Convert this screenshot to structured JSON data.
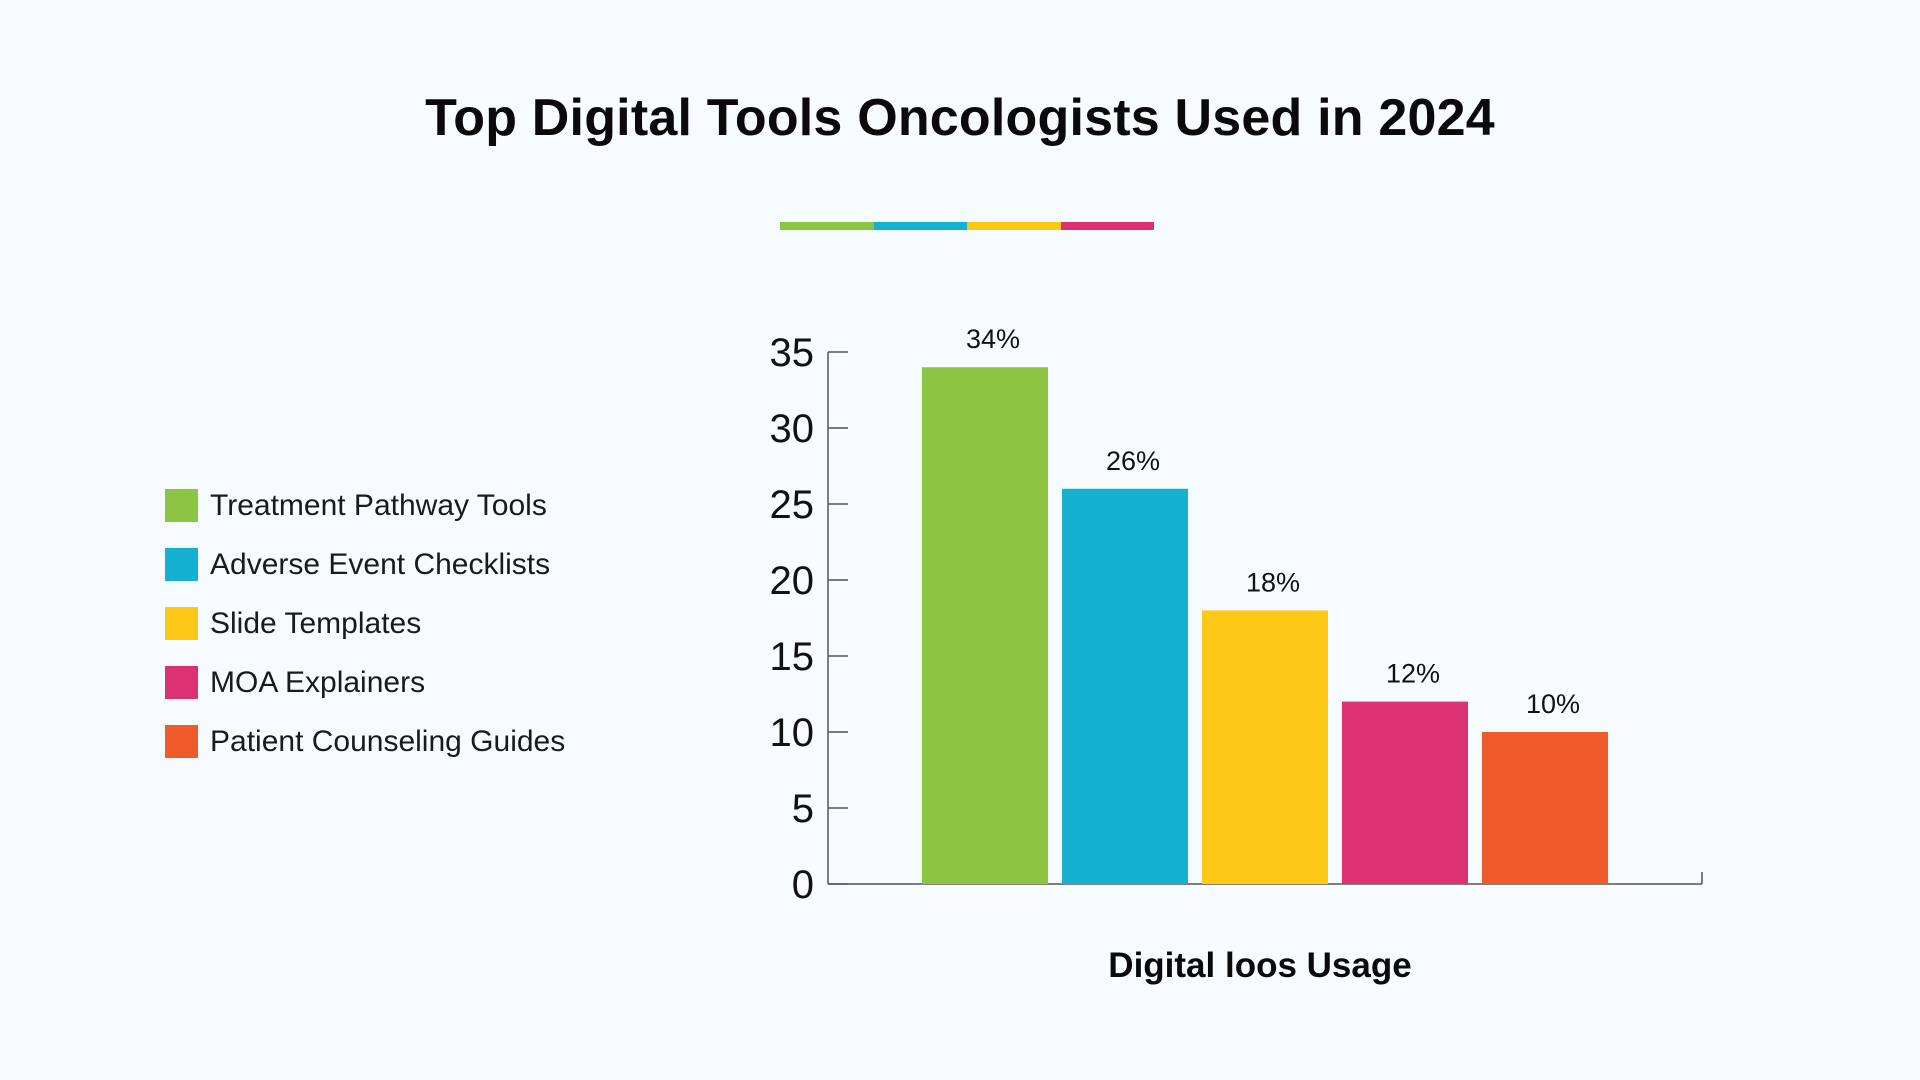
{
  "title": "Top Digital Tools Oncologists Used in 2024",
  "accent_colors": [
    "#8dc542",
    "#14b1d1",
    "#fec916",
    "#dc3270"
  ],
  "legend": [
    {
      "label": "Treatment Pathway Tools",
      "color": "#8dc542"
    },
    {
      "label": "Adverse Event Checklists",
      "color": "#14b1d1"
    },
    {
      "label": "Slide Templates",
      "color": "#fec916"
    },
    {
      "label": "MOA Explainers",
      "color": "#dc3270"
    },
    {
      "label": "Patient Counseling Guides",
      "color": "#f15b2c"
    }
  ],
  "chart_data": {
    "type": "bar",
    "title": "Top Digital Tools Oncologists Used in 2024",
    "xlabel": "Digital loos Usage",
    "ylabel": "",
    "ylim": [
      0,
      35
    ],
    "yticks": [
      0,
      5,
      10,
      15,
      20,
      25,
      30,
      35
    ],
    "categories": [
      "Treatment Pathway Tools",
      "Adverse Event Checklists",
      "Slide Templates",
      "MOA Explainers",
      "Patient Counseling Guides"
    ],
    "values": [
      34,
      26,
      18,
      12,
      10
    ],
    "data_labels": [
      "34%",
      "26%",
      "18%",
      "12%",
      "10%"
    ],
    "colors": [
      "#8dc542",
      "#14b1d1",
      "#fec916",
      "#dc3270",
      "#f15b2c"
    ],
    "legend_position": "left",
    "grid": false
  }
}
